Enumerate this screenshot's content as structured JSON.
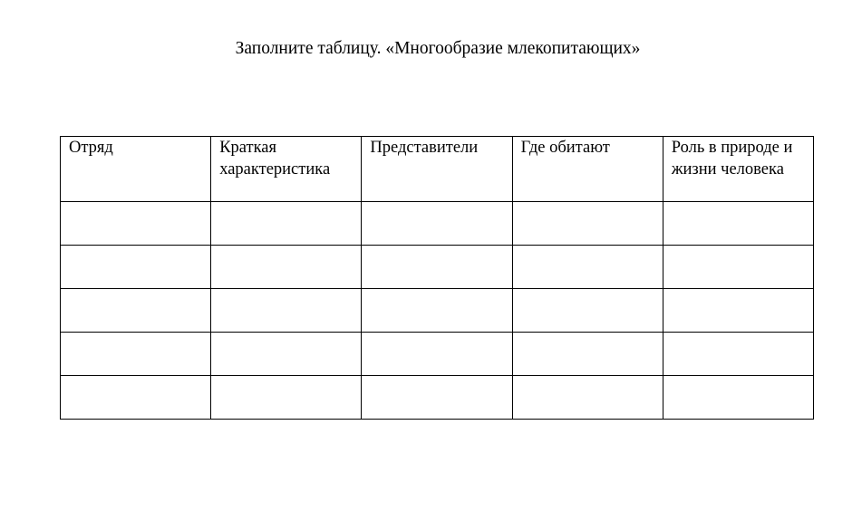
{
  "title": "Заполните таблицу. «Многообразие млекопитающих»",
  "table": {
    "headers": [
      "Отряд",
      "Краткая характеристика",
      "Представители",
      "Где обитают",
      "Роль в природе и жизни человека"
    ],
    "rows": [
      [
        "",
        "",
        "",
        "",
        ""
      ],
      [
        "",
        "",
        "",
        "",
        ""
      ],
      [
        "",
        "",
        "",
        "",
        ""
      ],
      [
        "",
        "",
        "",
        "",
        ""
      ],
      [
        "",
        "",
        "",
        "",
        ""
      ]
    ]
  }
}
